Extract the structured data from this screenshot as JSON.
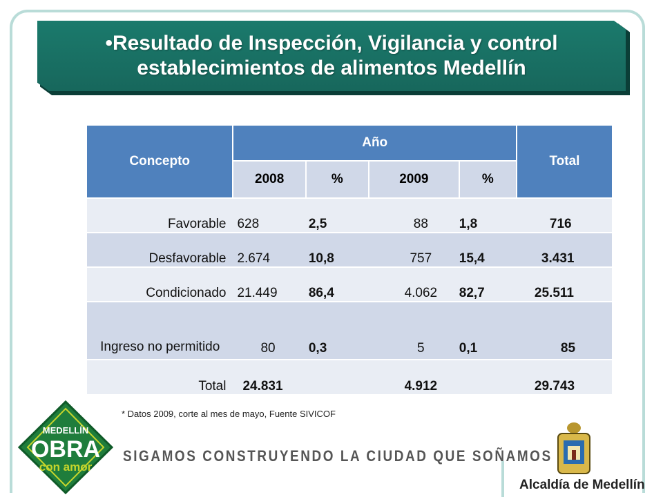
{
  "title": "•Resultado de Inspección, Vigilancia y control\nestablecimientos de alimentos Medellín",
  "table": {
    "header": {
      "concepto": "Concepto",
      "anio": "Año",
      "total": "Total",
      "sub": [
        "2008",
        "%",
        "2009",
        "%"
      ]
    },
    "rows": [
      {
        "concepto": "Favorable",
        "v2008": "628",
        "p2008": "2,5",
        "v2009": "88",
        "p2009": "1,8",
        "total": "716"
      },
      {
        "concepto": "Desfavorable",
        "v2008": "2.674",
        "p2008": "10,8",
        "v2009": "757",
        "p2009": "15,4",
        "total": "3.431"
      },
      {
        "concepto": "Condicionado",
        "v2008": "21.449",
        "p2008": "86,4",
        "v2009": "4.062",
        "p2009": "82,7",
        "total": "25.511"
      },
      {
        "concepto": "Ingreso no permitido",
        "v2008": "80",
        "p2008": "0,3",
        "v2009": "5",
        "p2009": "0,1",
        "total": "85"
      },
      {
        "concepto": "Total",
        "v2008": "24.831",
        "p2008": "",
        "v2009": "4.912",
        "p2009": "",
        "total": "29.743"
      }
    ]
  },
  "footnote": "* Datos 2009, corte al mes de mayo, Fuente SIVICOF",
  "logo": {
    "line1": "MEDELLÍN",
    "line2": "OBRA",
    "line3": "con amor"
  },
  "slogan": "SIGAMOS CONSTRUYENDO LA CIUDAD QUE SOÑAMOS",
  "institution": "Alcaldía de Medellín",
  "colors": {
    "banner": "#17675c",
    "header": "#4f81bd",
    "row_light": "#e9edf4",
    "row_dark": "#d0d8e8",
    "logo_green": "#1f7d3c",
    "logo_yellow": "#c6d52c"
  }
}
